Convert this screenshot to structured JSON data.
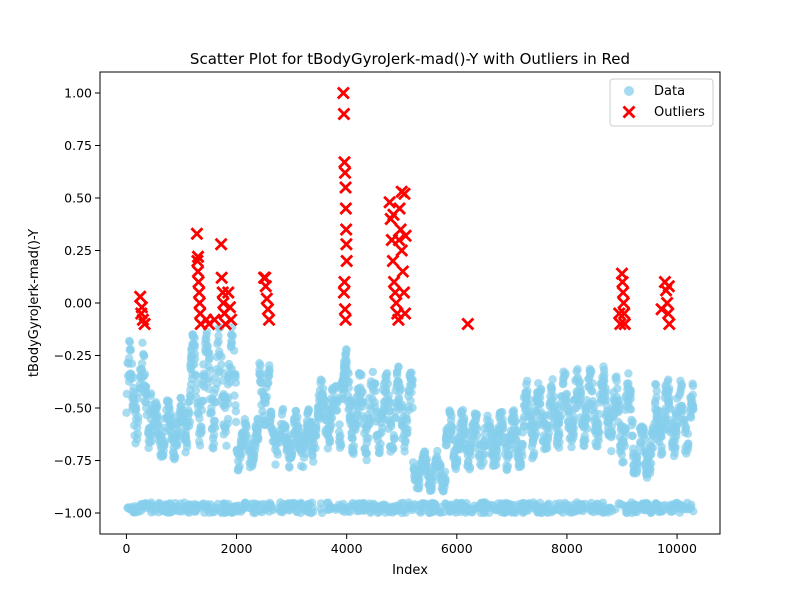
{
  "chart_data": {
    "type": "scatter",
    "title": "Scatter Plot for tBodyGyroJerk-mad()-Y with Outliers in Red",
    "xlabel": "Index",
    "ylabel": "tBodyGyroJerk-mad()-Y",
    "xlim": [
      -480,
      10780
    ],
    "ylim": [
      -1.1,
      1.1
    ],
    "xticks": [
      0,
      2000,
      4000,
      6000,
      8000,
      10000
    ],
    "xtick_labels": [
      "0",
      "2000",
      "4000",
      "6000",
      "8000",
      "10000"
    ],
    "yticks": [
      -1.0,
      -0.75,
      -0.5,
      -0.25,
      0.0,
      0.25,
      0.5,
      0.75,
      1.0
    ],
    "ytick_labels": [
      "−1.00",
      "−0.75",
      "−0.50",
      "−0.25",
      "0.00",
      "0.25",
      "0.50",
      "0.75",
      "1.00"
    ],
    "grid": false,
    "legend_position": "top-right",
    "series": [
      {
        "name": "Data",
        "marker": "circle",
        "color": "#87CEEB",
        "clusters": [
          {
            "x_range": [
              0,
              10300
            ],
            "y_range": [
              -1.0,
              -0.95
            ]
          },
          {
            "x_range": [
              0,
              450
            ],
            "y_range": [
              -0.7,
              -0.15
            ]
          },
          {
            "x_range": [
              450,
              1100
            ],
            "y_range": [
              -0.75,
              -0.45
            ]
          },
          {
            "x_range": [
              1100,
              2000
            ],
            "y_range": [
              -0.7,
              -0.1
            ]
          },
          {
            "x_range": [
              2000,
              2400
            ],
            "y_range": [
              -0.8,
              -0.55
            ]
          },
          {
            "x_range": [
              2400,
              2600
            ],
            "y_range": [
              -0.6,
              -0.2
            ]
          },
          {
            "x_range": [
              2600,
              3400
            ],
            "y_range": [
              -0.8,
              -0.5
            ]
          },
          {
            "x_range": [
              3400,
              3900
            ],
            "y_range": [
              -0.7,
              -0.35
            ]
          },
          {
            "x_range": [
              3900,
              4000
            ],
            "y_range": [
              -0.5,
              -0.2
            ]
          },
          {
            "x_range": [
              4000,
              4600
            ],
            "y_range": [
              -0.75,
              -0.3
            ]
          },
          {
            "x_range": [
              4600,
              5200
            ],
            "y_range": [
              -0.75,
              -0.3
            ]
          },
          {
            "x_range": [
              5200,
              5800
            ],
            "y_range": [
              -0.9,
              -0.7
            ]
          },
          {
            "x_range": [
              5800,
              7200
            ],
            "y_range": [
              -0.8,
              -0.5
            ]
          },
          {
            "x_range": [
              7200,
              7800
            ],
            "y_range": [
              -0.75,
              -0.35
            ]
          },
          {
            "x_range": [
              7800,
              8800
            ],
            "y_range": [
              -0.7,
              -0.3
            ]
          },
          {
            "x_range": [
              8800,
              9200
            ],
            "y_range": [
              -0.8,
              -0.3
            ]
          },
          {
            "x_range": [
              9200,
              9600
            ],
            "y_range": [
              -0.85,
              -0.55
            ]
          },
          {
            "x_range": [
              9600,
              10300
            ],
            "y_range": [
              -0.75,
              -0.35
            ]
          }
        ]
      },
      {
        "name": "Outliers",
        "marker": "x",
        "color": "#FF0000",
        "points": [
          [
            250,
            0.03
          ],
          [
            270,
            -0.05
          ],
          [
            300,
            -0.08
          ],
          [
            330,
            -0.1
          ],
          [
            280,
            -0.02
          ],
          [
            1280,
            0.33
          ],
          [
            1290,
            0.2
          ],
          [
            1300,
            0.15
          ],
          [
            1310,
            0.1
          ],
          [
            1320,
            0.05
          ],
          [
            1330,
            0.0
          ],
          [
            1340,
            -0.05
          ],
          [
            1350,
            -0.1
          ],
          [
            1300,
            0.22
          ],
          [
            1450,
            -0.08
          ],
          [
            1500,
            -0.1
          ],
          [
            1600,
            -0.08
          ],
          [
            1720,
            0.28
          ],
          [
            1730,
            0.12
          ],
          [
            1750,
            0.05
          ],
          [
            1760,
            0.0
          ],
          [
            1780,
            -0.05
          ],
          [
            1800,
            -0.1
          ],
          [
            1850,
            0.05
          ],
          [
            1880,
            -0.02
          ],
          [
            1900,
            -0.08
          ],
          [
            2500,
            0.12
          ],
          [
            2530,
            0.08
          ],
          [
            2550,
            0.02
          ],
          [
            2570,
            -0.03
          ],
          [
            2590,
            -0.08
          ],
          [
            2520,
            0.12
          ],
          [
            3940,
            1.0
          ],
          [
            3950,
            0.9
          ],
          [
            3960,
            0.67
          ],
          [
            3970,
            0.62
          ],
          [
            3980,
            0.55
          ],
          [
            3985,
            0.45
          ],
          [
            3990,
            0.35
          ],
          [
            3995,
            0.28
          ],
          [
            4000,
            0.2
          ],
          [
            3960,
            0.1
          ],
          [
            3950,
            0.05
          ],
          [
            3970,
            -0.03
          ],
          [
            3980,
            -0.08
          ],
          [
            4780,
            0.48
          ],
          [
            4800,
            0.4
          ],
          [
            4820,
            0.3
          ],
          [
            4840,
            0.2
          ],
          [
            4860,
            0.1
          ],
          [
            4880,
            0.05
          ],
          [
            4900,
            0.0
          ],
          [
            4920,
            -0.05
          ],
          [
            4940,
            -0.08
          ],
          [
            4960,
            0.45
          ],
          [
            4980,
            0.35
          ],
          [
            5000,
            0.25
          ],
          [
            5020,
            0.15
          ],
          [
            5040,
            0.05
          ],
          [
            5060,
            -0.05
          ],
          [
            5000,
            0.53
          ],
          [
            5050,
            0.52
          ],
          [
            4850,
            0.42
          ],
          [
            4950,
            0.3
          ],
          [
            5070,
            0.32
          ],
          [
            6200,
            -0.1
          ],
          [
            8950,
            -0.05
          ],
          [
            8970,
            -0.1
          ],
          [
            9000,
            0.14
          ],
          [
            9010,
            0.1
          ],
          [
            9020,
            0.05
          ],
          [
            9030,
            0.0
          ],
          [
            9040,
            -0.05
          ],
          [
            9050,
            -0.1
          ],
          [
            9720,
            -0.03
          ],
          [
            9780,
            0.1
          ],
          [
            9800,
            0.06
          ],
          [
            9820,
            0.0
          ],
          [
            9840,
            -0.05
          ],
          [
            9860,
            -0.1
          ],
          [
            9850,
            0.08
          ]
        ]
      }
    ]
  }
}
